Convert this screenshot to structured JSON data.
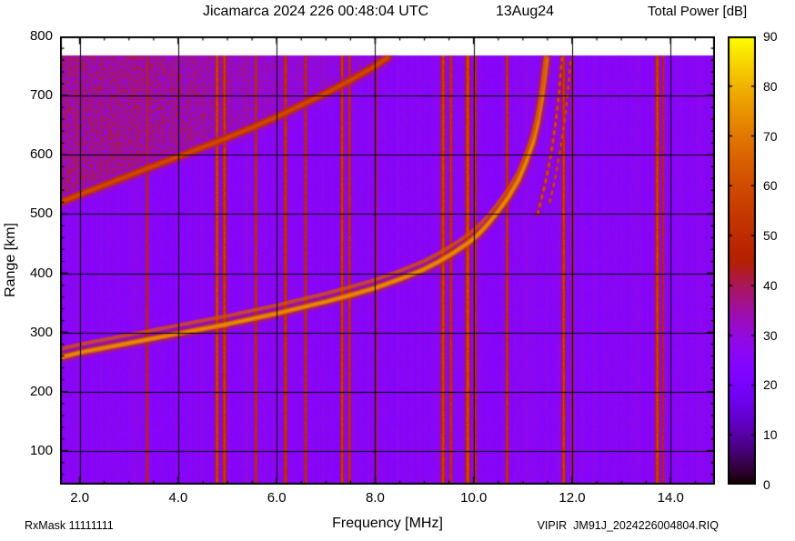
{
  "footer": {
    "rxmask": "RxMask 11111111",
    "file": "VIPIR  JM91J_2024226004804.RIQ"
  },
  "chart_data": {
    "type": "heatmap",
    "title": "Jicamarca 2024 226 00:48:04 UTC",
    "date_label": "13Aug24",
    "colorbar_title": "Total Power [dB]",
    "xlabel": "Frequency [MHz]",
    "ylabel": "Range [km]",
    "xlim": [
      1.6,
      14.9
    ],
    "ylim": [
      43,
      800
    ],
    "xticks": [
      2,
      4,
      6,
      8,
      10,
      12,
      14
    ],
    "xtick_labels": [
      "2.0",
      "4.0",
      "6.0",
      "8.0",
      "10.0",
      "12.0",
      "14.0"
    ],
    "yticks": [
      100,
      200,
      300,
      400,
      500,
      600,
      700,
      800
    ],
    "x_minor_step": 0.5,
    "y_minor_step": 20,
    "colorbar": {
      "min": 0,
      "max": 90,
      "ticks": [
        0,
        10,
        20,
        30,
        40,
        50,
        60,
        70,
        80,
        90
      ]
    },
    "background_db": 26,
    "data_top_km": 768,
    "diffuse_region": {
      "note": "spread echo above second-hop trace",
      "max_freq": 8.8,
      "extra_db": 15
    },
    "rfi_lines": [
      {
        "freq": 3.36,
        "width": 0.05,
        "db": 52
      },
      {
        "freq": 4.78,
        "width": 0.06,
        "db": 63
      },
      {
        "freq": 4.93,
        "width": 0.07,
        "db": 60
      },
      {
        "freq": 5.57,
        "width": 0.05,
        "db": 55
      },
      {
        "freq": 6.17,
        "width": 0.06,
        "db": 58
      },
      {
        "freq": 6.58,
        "width": 0.05,
        "db": 56
      },
      {
        "freq": 7.32,
        "width": 0.06,
        "db": 60
      },
      {
        "freq": 7.47,
        "width": 0.05,
        "db": 57
      },
      {
        "freq": 8.02,
        "width": 0.03,
        "db": 46
      },
      {
        "freq": 9.37,
        "width": 0.07,
        "db": 62
      },
      {
        "freq": 9.53,
        "width": 0.05,
        "db": 58
      },
      {
        "freq": 9.87,
        "width": 0.08,
        "db": 64
      },
      {
        "freq": 10.02,
        "width": 0.05,
        "db": 60
      },
      {
        "freq": 10.67,
        "width": 0.05,
        "db": 57
      },
      {
        "freq": 11.82,
        "width": 0.06,
        "db": 61
      },
      {
        "freq": 12.0,
        "width": 0.04,
        "db": 56
      },
      {
        "freq": 13.72,
        "width": 0.07,
        "db": 62
      },
      {
        "freq": 13.84,
        "width": 0.04,
        "db": 54
      }
    ],
    "traces": [
      {
        "name": "f-layer-echo",
        "db": 66,
        "width_km": 9,
        "double_offset_km": 14,
        "points": [
          [
            1.62,
            258
          ],
          [
            2.0,
            266
          ],
          [
            2.5,
            274
          ],
          [
            3.0,
            282
          ],
          [
            3.5,
            290
          ],
          [
            4.0,
            298
          ],
          [
            4.5,
            306
          ],
          [
            5.0,
            314
          ],
          [
            5.5,
            323
          ],
          [
            6.0,
            332
          ],
          [
            6.5,
            342
          ],
          [
            7.0,
            352
          ],
          [
            7.5,
            363
          ],
          [
            8.0,
            375
          ],
          [
            8.5,
            390
          ],
          [
            9.0,
            407
          ],
          [
            9.3,
            420
          ],
          [
            9.6,
            435
          ],
          [
            9.9,
            452
          ],
          [
            10.1,
            466
          ],
          [
            10.3,
            484
          ],
          [
            10.5,
            505
          ],
          [
            10.7,
            528
          ],
          [
            10.9,
            556
          ],
          [
            11.05,
            585
          ],
          [
            11.2,
            620
          ],
          [
            11.3,
            655
          ],
          [
            11.38,
            695
          ],
          [
            11.44,
            735
          ],
          [
            11.48,
            762
          ]
        ]
      },
      {
        "name": "second-hop-echo",
        "db": 51,
        "width_km": 13,
        "points": [
          [
            1.62,
            520
          ],
          [
            2.0,
            533
          ],
          [
            2.5,
            549
          ],
          [
            3.0,
            565
          ],
          [
            3.5,
            581
          ],
          [
            4.0,
            597
          ],
          [
            4.5,
            613
          ],
          [
            5.0,
            629
          ],
          [
            5.5,
            646
          ],
          [
            6.0,
            664
          ],
          [
            6.5,
            684
          ],
          [
            7.0,
            704
          ],
          [
            7.5,
            726
          ],
          [
            8.0,
            750
          ],
          [
            8.25,
            764
          ]
        ]
      },
      {
        "name": "x-mode-branch-1",
        "db": 55,
        "width_km": 5,
        "dashed": true,
        "points": [
          [
            11.3,
            500
          ],
          [
            11.45,
            550
          ],
          [
            11.57,
            600
          ],
          [
            11.66,
            650
          ],
          [
            11.73,
            700
          ],
          [
            11.78,
            750
          ],
          [
            11.8,
            764
          ]
        ]
      },
      {
        "name": "x-mode-branch-2",
        "db": 54,
        "width_km": 4,
        "dashed": true,
        "points": [
          [
            11.55,
            520
          ],
          [
            11.68,
            570
          ],
          [
            11.78,
            620
          ],
          [
            11.87,
            672
          ],
          [
            11.93,
            722
          ],
          [
            11.97,
            764
          ]
        ]
      }
    ]
  }
}
